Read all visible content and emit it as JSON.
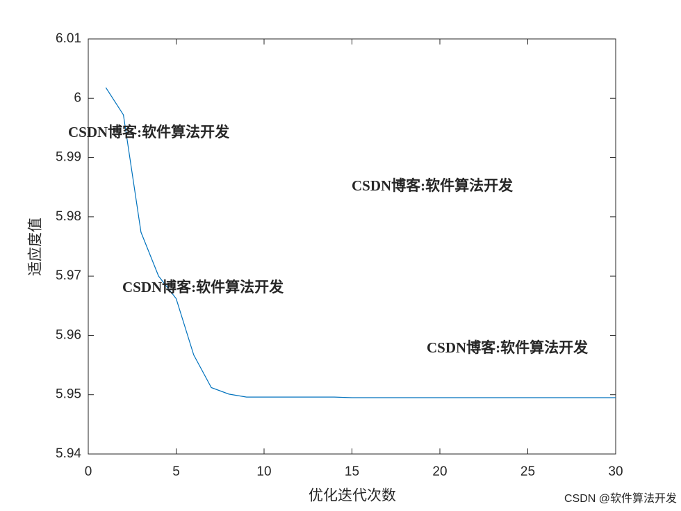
{
  "chart_data": {
    "type": "line",
    "x_label": "优化迭代次数",
    "y_label": "适应度值",
    "x": [
      1,
      2,
      3,
      4,
      5,
      6,
      7,
      8,
      9,
      10,
      11,
      12,
      13,
      14,
      15,
      16,
      17,
      18,
      19,
      20,
      21,
      22,
      23,
      24,
      25,
      26,
      27,
      28,
      29,
      30
    ],
    "series": [
      {
        "color": "#0072bd",
        "values": [
          6.0018,
          5.9972,
          5.9774,
          5.97,
          5.9662,
          5.9567,
          5.9512,
          5.9501,
          5.9496,
          5.9496,
          5.9496,
          5.9496,
          5.9496,
          5.9496,
          5.9495,
          5.9495,
          5.9495,
          5.9495,
          5.9495,
          5.9495,
          5.9495,
          5.9495,
          5.9495,
          5.9495,
          5.9495,
          5.9495,
          5.9495,
          5.9495,
          5.9495,
          5.9495
        ]
      }
    ],
    "xlim": [
      0,
      30
    ],
    "xticks": [
      0,
      5,
      10,
      15,
      20,
      25,
      30
    ],
    "ylim": [
      5.94,
      6.01
    ],
    "yticks": [
      5.94,
      5.95,
      5.96,
      5.97,
      5.98,
      5.99,
      6,
      6.01
    ],
    "grid": false,
    "annotations": [
      {
        "text": "CSDN博客:软件算法开发",
        "color": "#f08080"
      },
      {
        "text": "CSDN博客:软件算法开发",
        "color": "#7b8ff0"
      },
      {
        "text": "CSDN博客:软件算法开发",
        "color": "#f8d39c"
      },
      {
        "text": "CSDN博客:软件算法开发",
        "color": "#b8b8b8"
      },
      {
        "text": "CSDN @软件算法开发",
        "color": "#9a9a9a"
      }
    ]
  }
}
